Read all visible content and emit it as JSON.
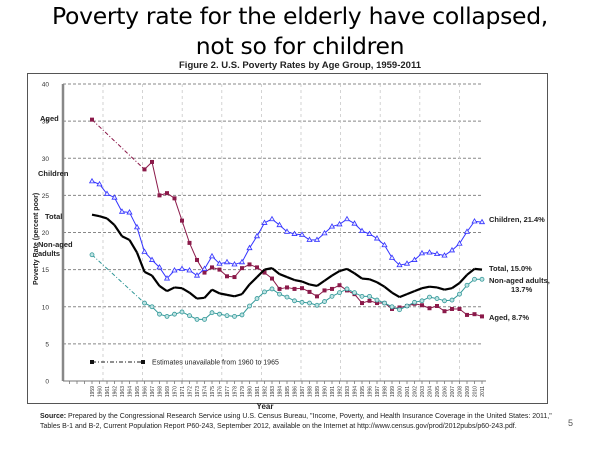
{
  "slide": {
    "title_line1": "Poverty rate for the elderly have collapsed,",
    "title_line2": "not so for children",
    "page_number": "5"
  },
  "figure": {
    "title": "Figure 2. U.S. Poverty Rates by Age Group, 1959-2011",
    "source_label": "Source:",
    "source_text": "Prepared by the Congressional Research Service using U.S. Census Bureau, \"Income, Poverty, and Health Insurance Coverage in the United States: 2011,\" Tables B-1 and B-2, Current Population Report P60-243, September 2012, available on the Internet at http://www.census.gov/prod/2012pubs/p60-243.pdf."
  },
  "chart_data": {
    "type": "line",
    "title": "Figure 2. U.S. Poverty Rates by Age Group, 1959-2011",
    "xlabel": "Year",
    "ylabel": "Poverty Rate (percent poor)",
    "ylim": [
      0,
      40
    ],
    "yticks": [
      0,
      5,
      10,
      15,
      20,
      25,
      30,
      35,
      40
    ],
    "x": [
      1959,
      1960,
      1961,
      1962,
      1963,
      1964,
      1965,
      1966,
      1967,
      1968,
      1969,
      1970,
      1971,
      1972,
      1973,
      1974,
      1975,
      1976,
      1977,
      1978,
      1979,
      1980,
      1981,
      1982,
      1983,
      1984,
      1985,
      1986,
      1987,
      1988,
      1989,
      1990,
      1991,
      1992,
      1993,
      1994,
      1995,
      1996,
      1997,
      1998,
      1999,
      2000,
      2001,
      2002,
      2003,
      2004,
      2005,
      2006,
      2007,
      2008,
      2009,
      2010,
      2011
    ],
    "grid": true,
    "annotation": "Estimates unavailable from 1960 to 1965",
    "series": [
      {
        "name": "Aged",
        "end_label": "Aged, 8.7%",
        "start_label": "Aged",
        "color": "#8b1a4a",
        "marker": "square",
        "values": [
          35.2,
          null,
          null,
          null,
          null,
          null,
          null,
          28.5,
          29.5,
          25.0,
          25.3,
          24.6,
          21.6,
          18.6,
          16.3,
          14.6,
          15.3,
          15.0,
          14.1,
          14.0,
          15.2,
          15.7,
          15.3,
          14.6,
          13.8,
          12.4,
          12.6,
          12.4,
          12.5,
          12.0,
          11.4,
          12.2,
          12.4,
          12.9,
          12.2,
          11.7,
          10.5,
          10.8,
          10.5,
          10.5,
          9.7,
          9.9,
          10.1,
          10.4,
          10.2,
          9.8,
          10.1,
          9.4,
          9.7,
          9.7,
          8.9,
          9.0,
          8.7
        ]
      },
      {
        "name": "Children",
        "end_label": "Children, 21.4%",
        "start_label": "Children",
        "color": "#3333ff",
        "marker": "triangle",
        "values": [
          26.9,
          26.5,
          25.2,
          24.7,
          22.8,
          22.7,
          20.7,
          17.4,
          16.3,
          15.3,
          13.8,
          14.9,
          15.1,
          14.9,
          14.2,
          15.1,
          16.8,
          15.8,
          16.0,
          15.7,
          16.0,
          17.9,
          19.5,
          21.3,
          21.8,
          21.0,
          20.1,
          19.8,
          19.7,
          19.0,
          19.0,
          19.9,
          20.8,
          21.1,
          21.8,
          21.2,
          20.2,
          19.8,
          19.2,
          18.3,
          16.6,
          15.6,
          15.8,
          16.3,
          17.2,
          17.3,
          17.1,
          16.9,
          17.6,
          18.5,
          20.1,
          21.5,
          21.4
        ]
      },
      {
        "name": "Total",
        "end_label": "Total, 15.0%",
        "start_label": "Total",
        "color": "#000000",
        "marker": "none",
        "values": [
          22.4,
          22.2,
          21.9,
          21.0,
          19.5,
          19.0,
          17.3,
          14.7,
          14.2,
          12.8,
          12.1,
          12.6,
          12.5,
          11.9,
          11.1,
          11.2,
          12.3,
          11.8,
          11.6,
          11.4,
          11.7,
          13.0,
          14.0,
          15.0,
          15.2,
          14.4,
          14.0,
          13.6,
          13.4,
          13.0,
          12.8,
          13.5,
          14.2,
          14.8,
          15.1,
          14.5,
          13.8,
          13.7,
          13.3,
          12.7,
          11.9,
          11.3,
          11.7,
          12.1,
          12.5,
          12.7,
          12.6,
          12.3,
          12.5,
          13.2,
          14.3,
          15.1,
          15.0
        ]
      },
      {
        "name": "Non-aged adults",
        "end_label": "Non-aged adults, 13.7%",
        "start_label": "Non-aged adults",
        "color": "#339999",
        "marker": "circle",
        "values": [
          17.0,
          null,
          null,
          null,
          null,
          null,
          null,
          10.5,
          10.0,
          9.0,
          8.7,
          9.0,
          9.3,
          8.8,
          8.3,
          8.3,
          9.2,
          9.0,
          8.8,
          8.7,
          8.9,
          10.1,
          11.1,
          12.0,
          12.4,
          11.7,
          11.3,
          10.8,
          10.6,
          10.5,
          10.2,
          10.7,
          11.4,
          11.9,
          12.4,
          11.9,
          11.4,
          11.4,
          10.9,
          10.5,
          10.0,
          9.6,
          10.1,
          10.6,
          10.8,
          11.3,
          11.1,
          10.8,
          10.9,
          11.7,
          12.9,
          13.7,
          13.7
        ]
      }
    ]
  }
}
